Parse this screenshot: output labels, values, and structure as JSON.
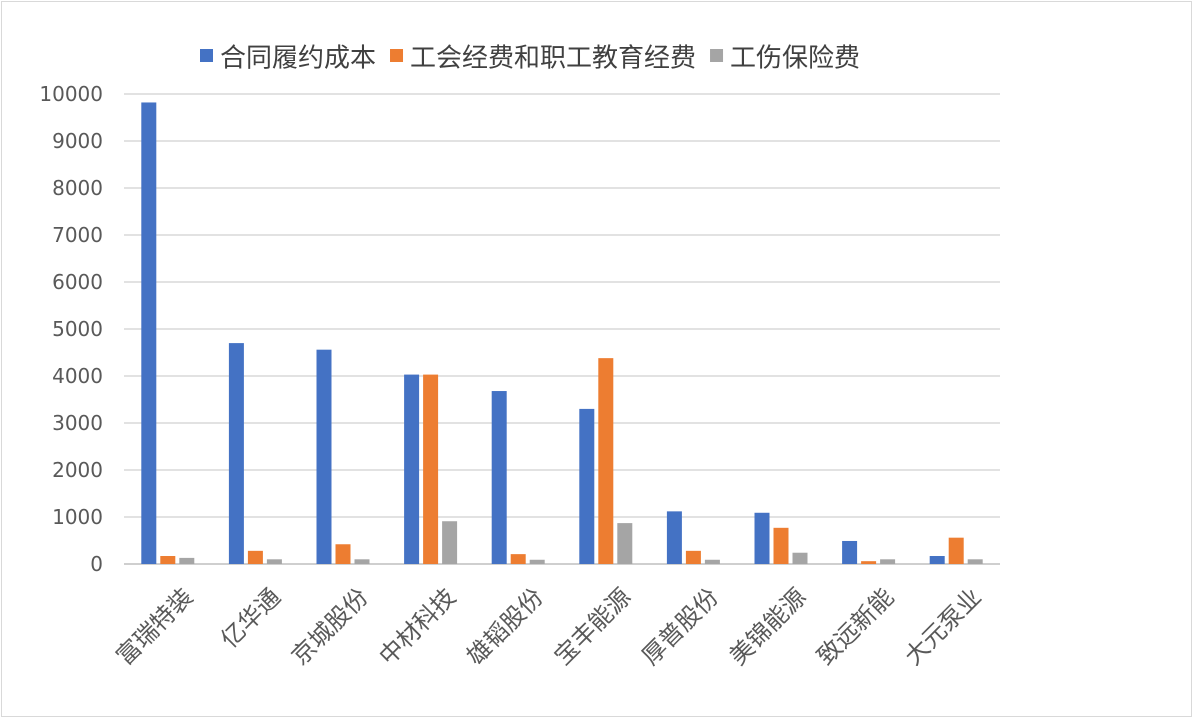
{
  "chart_data": {
    "type": "bar",
    "title": "",
    "xlabel": "",
    "ylabel": "",
    "ylim": [
      0,
      10000
    ],
    "yticks": [
      0,
      1000,
      2000,
      3000,
      4000,
      5000,
      6000,
      7000,
      8000,
      9000,
      10000
    ],
    "grid": true,
    "legend_position": "top",
    "categories": [
      "富瑞特装",
      "亿华通",
      "京城股份",
      "中材科技",
      "雄韬股份",
      "宝丰能源",
      "厚普股份",
      "美锦能源",
      "致远新能",
      "大元泵业"
    ],
    "series": [
      {
        "name": "合同履约成本",
        "color": "#4472C4",
        "values": [
          9820,
          4700,
          4560,
          4030,
          3680,
          3300,
          1120,
          1090,
          490,
          170
        ]
      },
      {
        "name": "工会经费和职工教育经费",
        "color": "#ED7D31",
        "values": [
          170,
          280,
          420,
          4030,
          210,
          4380,
          280,
          770,
          60,
          560
        ]
      },
      {
        "name": "工伤保险费",
        "color": "#A5A5A5",
        "values": [
          130,
          100,
          100,
          910,
          90,
          870,
          90,
          240,
          100,
          100
        ]
      }
    ]
  }
}
